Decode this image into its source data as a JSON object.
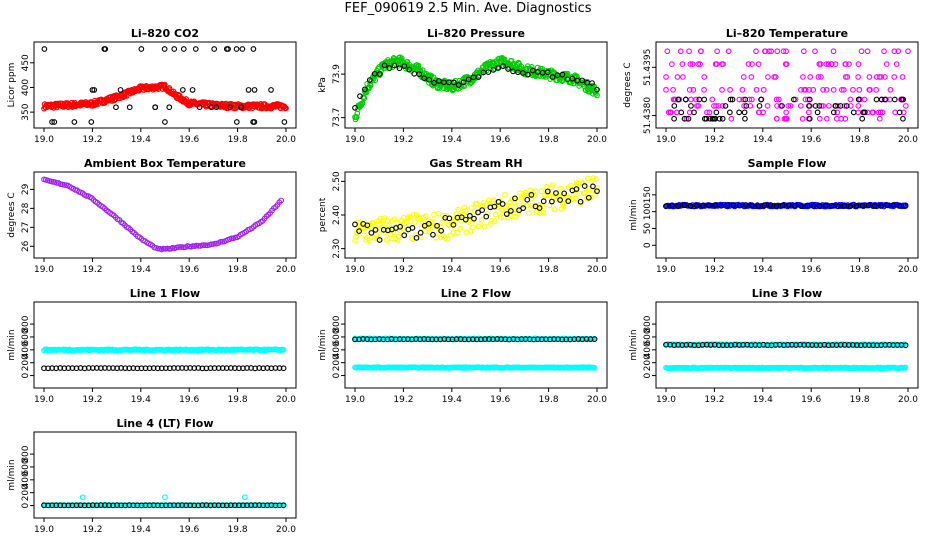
{
  "main_title": "FEF_090619  2.5 Min. Ave. Diagnostics",
  "colors": {
    "red": "#ff0000",
    "green": "#00cc00",
    "magenta": "#ff00ff",
    "purple": "#a020f0",
    "yellow": "#ffff00",
    "blue": "#0000ff",
    "cyan": "#00ffff",
    "black": "#000000"
  },
  "chart_data": [
    {
      "id": "co2",
      "type": "scatter",
      "title": "Li–820 CO2",
      "ylabel": "Licor ppm",
      "xlim": [
        19.0,
        20.0
      ],
      "ylim": [
        330,
        480
      ],
      "xticks": [
        "19.0",
        "19.2",
        "19.4",
        "19.6",
        "19.8",
        "20.0"
      ],
      "yticks": [
        "350",
        "400",
        "450"
      ],
      "series": [
        {
          "name": "co2-band",
          "color": "red",
          "style": "band",
          "x": [
            19.0,
            19.2,
            19.3,
            19.4,
            19.5,
            19.54,
            19.6,
            19.7,
            19.8,
            20.0
          ],
          "y": [
            362,
            367,
            380,
            398,
            402,
            385,
            368,
            364,
            362,
            362
          ],
          "spread": 5
        },
        {
          "name": "co2-sparse",
          "color": "black",
          "style": "scatter",
          "levels": [
            330,
            360,
            395,
            478
          ],
          "n": 42
        }
      ]
    },
    {
      "id": "pressure",
      "type": "scatter",
      "title": "Li–820 Pressure",
      "ylabel": "kPa",
      "xlim": [
        19.0,
        20.0
      ],
      "ylim": [
        73.68,
        74.02
      ],
      "xticks": [
        "19.0",
        "19.2",
        "19.4",
        "19.6",
        "19.8",
        "20.0"
      ],
      "yticks": [
        "73.7",
        "73.9"
      ],
      "series": [
        {
          "name": "pressure-green",
          "color": "green",
          "style": "band",
          "x": [
            19.0,
            19.05,
            19.12,
            19.18,
            19.26,
            19.33,
            19.4,
            19.48,
            19.56,
            19.62,
            19.7,
            19.8,
            19.9,
            20.0
          ],
          "y": [
            73.7,
            73.84,
            73.94,
            73.96,
            73.92,
            73.86,
            73.84,
            73.88,
            73.94,
            73.96,
            73.92,
            73.9,
            73.88,
            73.82
          ],
          "spread": 0.022
        },
        {
          "name": "pressure-black",
          "color": "black",
          "style": "points",
          "x": [
            19.0,
            19.05,
            19.12,
            19.18,
            19.26,
            19.33,
            19.4,
            19.48,
            19.56,
            19.62,
            19.7,
            19.8,
            19.9,
            20.0
          ],
          "y": [
            73.75,
            73.86,
            73.93,
            73.94,
            73.9,
            73.86,
            73.85,
            73.88,
            73.92,
            73.93,
            73.91,
            73.9,
            73.88,
            73.84
          ],
          "n": 50,
          "spread": 0.012
        }
      ]
    },
    {
      "id": "temperature",
      "type": "scatter",
      "title": "Li–820 Temperature",
      "ylabel": "degrees C",
      "xlim": [
        19.0,
        20.0
      ],
      "ylim": [
        51.4378,
        51.4401
      ],
      "xticks": [
        "19.0",
        "19.2",
        "19.4",
        "19.6",
        "19.8",
        "20.0"
      ],
      "yticks": [
        "51.4380",
        "51.4395"
      ],
      "ytick_values": [
        51.438,
        51.4395
      ],
      "series": [
        {
          "name": "temp-magenta",
          "color": "magenta",
          "style": "scatter",
          "levels": [
            51.4379,
            51.4381,
            51.4383,
            51.4385,
            51.4388,
            51.4392,
            51.4396,
            51.44
          ],
          "n": 190
        },
        {
          "name": "temp-black",
          "color": "black",
          "style": "scatter",
          "levels": [
            51.4379,
            51.4381,
            51.4383,
            51.4385
          ],
          "n": 60
        }
      ]
    },
    {
      "id": "boxtemp",
      "type": "line",
      "title": "Ambient Box Temperature",
      "ylabel": "degrees C",
      "xlim": [
        19.0,
        20.0
      ],
      "ylim": [
        25.7,
        29.6
      ],
      "xticks": [
        "19.0",
        "19.2",
        "19.4",
        "19.6",
        "19.8",
        "20.0"
      ],
      "yticks": [
        "26",
        "27",
        "28",
        "29"
      ],
      "series": [
        {
          "name": "boxtemp-line",
          "color": "purple",
          "style": "curve",
          "x": [
            19.0,
            19.1,
            19.2,
            19.3,
            19.4,
            19.47,
            19.5,
            19.6,
            19.7,
            19.8,
            19.9,
            19.98
          ],
          "y": [
            29.5,
            29.2,
            28.5,
            27.5,
            26.4,
            25.85,
            25.85,
            26.0,
            26.1,
            26.5,
            27.3,
            28.4
          ],
          "n": 130,
          "spread": 0.03
        }
      ]
    },
    {
      "id": "rh",
      "type": "scatter",
      "title": "Gas Stream RH",
      "ylabel": "percent",
      "xlim": [
        19.0,
        20.0
      ],
      "ylim": [
        2.29,
        2.51
      ],
      "xticks": [
        "19.0",
        "19.2",
        "19.4",
        "19.6",
        "19.8",
        "20.0"
      ],
      "yticks": [
        "2.30",
        "2.40",
        "2.50"
      ],
      "series": [
        {
          "name": "rh-yellow",
          "color": "yellow",
          "style": "noisy",
          "x": [
            19.0,
            19.2,
            19.4,
            19.6,
            19.8,
            20.0
          ],
          "y": [
            2.35,
            2.36,
            2.37,
            2.42,
            2.45,
            2.48
          ],
          "n": 240,
          "spread": 0.04
        },
        {
          "name": "rh-black",
          "color": "black",
          "style": "noisy",
          "x": [
            19.0,
            19.2,
            19.4,
            19.6,
            19.8,
            20.0
          ],
          "y": [
            2.35,
            2.35,
            2.37,
            2.42,
            2.45,
            2.47
          ],
          "n": 60,
          "spread": 0.025
        }
      ]
    },
    {
      "id": "sampleflow",
      "type": "scatter",
      "title": "Sample Flow",
      "ylabel": "ml/min",
      "xlim": [
        19.0,
        20.0
      ],
      "ylim": [
        -20,
        200
      ],
      "xticks": [
        "19.0",
        "19.2",
        "19.4",
        "19.6",
        "19.8",
        "20.0"
      ],
      "yticks": [
        "0",
        "50",
        "100",
        "150"
      ],
      "series": [
        {
          "name": "sample-blue",
          "color": "blue",
          "style": "flat",
          "value": 118,
          "n": 200,
          "spread": 3
        },
        {
          "name": "sample-black",
          "color": "black",
          "style": "flat",
          "value": 118,
          "n": 40,
          "spread": 2
        }
      ]
    },
    {
      "id": "line1",
      "type": "scatter",
      "title": "Line 1 Flow",
      "ylabel": "ml/min",
      "xlim": [
        19.0,
        20.0
      ],
      "ylim": [
        -100,
        1050
      ],
      "xticks": [
        "19.0",
        "19.2",
        "19.4",
        "19.6",
        "19.8",
        "20.0"
      ],
      "yticks": [
        "0",
        "200",
        "400",
        "600",
        "800"
      ],
      "series": [
        {
          "name": "line1-cyan",
          "color": "cyan",
          "style": "flat",
          "value": 400,
          "n": 200,
          "spread": 10
        },
        {
          "name": "line1-black",
          "color": "black",
          "style": "flat",
          "value": 115,
          "n": 60,
          "spread": 3
        }
      ]
    },
    {
      "id": "line2",
      "type": "scatter",
      "title": "Line 2 Flow",
      "ylabel": "ml/min",
      "xlim": [
        19.0,
        20.0
      ],
      "ylim": [
        -100,
        1050
      ],
      "xticks": [
        "19.0",
        "19.2",
        "19.4",
        "19.6",
        "19.8",
        "20.0"
      ],
      "yticks": [
        "0",
        "200",
        "400",
        "600",
        "800"
      ],
      "series": [
        {
          "name": "line2-cyan-high",
          "color": "cyan",
          "style": "flat",
          "value": 570,
          "n": 200,
          "spread": 8
        },
        {
          "name": "line2-cyan-low",
          "color": "cyan",
          "style": "flat",
          "value": 125,
          "n": 200,
          "spread": 6
        },
        {
          "name": "line2-black",
          "color": "black",
          "style": "flat",
          "value": 565,
          "n": 60,
          "spread": 4
        }
      ]
    },
    {
      "id": "line3",
      "type": "scatter",
      "title": "Line 3 Flow",
      "ylabel": "ml/min",
      "xlim": [
        19.0,
        20.0
      ],
      "ylim": [
        -100,
        1050
      ],
      "xticks": [
        "19.0",
        "19.2",
        "19.4",
        "19.6",
        "19.8",
        "20.0"
      ],
      "yticks": [
        "0",
        "200",
        "400",
        "600",
        "800"
      ],
      "series": [
        {
          "name": "line3-cyan-high",
          "color": "cyan",
          "style": "flat",
          "value": 480,
          "n": 200,
          "spread": 8
        },
        {
          "name": "line3-cyan-low",
          "color": "cyan",
          "style": "flat",
          "value": 120,
          "n": 200,
          "spread": 6
        },
        {
          "name": "line3-black",
          "color": "black",
          "style": "flat",
          "value": 475,
          "n": 60,
          "spread": 4
        }
      ]
    },
    {
      "id": "line4",
      "type": "scatter",
      "title": "Line 4 (LT) Flow",
      "ylabel": "ml/min",
      "xlim": [
        19.0,
        20.0
      ],
      "ylim": [
        -100,
        1050
      ],
      "xticks": [
        "19.0",
        "19.2",
        "19.4",
        "19.6",
        "19.8",
        "20.0"
      ],
      "yticks": [
        "0",
        "200",
        "400",
        "600",
        "800"
      ],
      "series": [
        {
          "name": "line4-cyan",
          "color": "cyan",
          "style": "flat",
          "value": 5,
          "n": 200,
          "spread": 2,
          "spikes": [
            [
              19.16,
              130
            ],
            [
              19.5,
              130
            ],
            [
              19.83,
              130
            ]
          ]
        },
        {
          "name": "line4-black",
          "color": "black",
          "style": "flat",
          "value": 5,
          "n": 60,
          "spread": 2
        }
      ]
    }
  ]
}
